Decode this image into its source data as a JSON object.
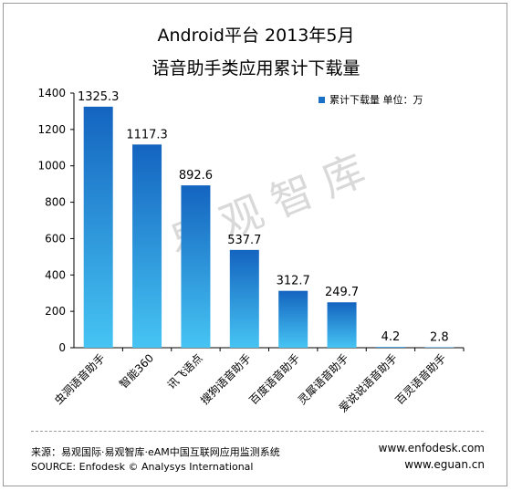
{
  "chart_data": {
    "type": "bar",
    "title": "Android平台 2013年5月",
    "subtitle": "语音助手类应用累计下载量",
    "legend": "累计下载量 单位：万",
    "legend_position": "top-right",
    "categories": [
      "虫洞语音助手",
      "智能360",
      "讯飞语点",
      "搜狗语音助手",
      "百度语音助手",
      "灵犀语音助手",
      "爱说说语音助手",
      "百灵语音助手"
    ],
    "values": [
      1325.3,
      1117.3,
      892.6,
      537.7,
      312.7,
      249.7,
      4.2,
      2.8
    ],
    "value_labels": [
      "1325.3",
      "1117.3",
      "892.6",
      "537.7",
      "312.7",
      "249.7",
      "4.2",
      "2.8"
    ],
    "yticks": [
      0,
      200,
      400,
      600,
      800,
      1000,
      1200,
      1400
    ],
    "ylim": [
      0,
      1400
    ],
    "grid": false,
    "colors": {
      "bar_top": "#1464bf",
      "bar_bottom": "#46c4f3"
    }
  },
  "watermark": "易观智库",
  "footer": {
    "source_cn": "来源：易观国际·易观智库·eAM中国互联网应用监测系统",
    "source_en": "SOURCE: Enfodesk © Analysys International",
    "url1": "www.enfodesk.com",
    "url2": "www.eguan.cn"
  }
}
